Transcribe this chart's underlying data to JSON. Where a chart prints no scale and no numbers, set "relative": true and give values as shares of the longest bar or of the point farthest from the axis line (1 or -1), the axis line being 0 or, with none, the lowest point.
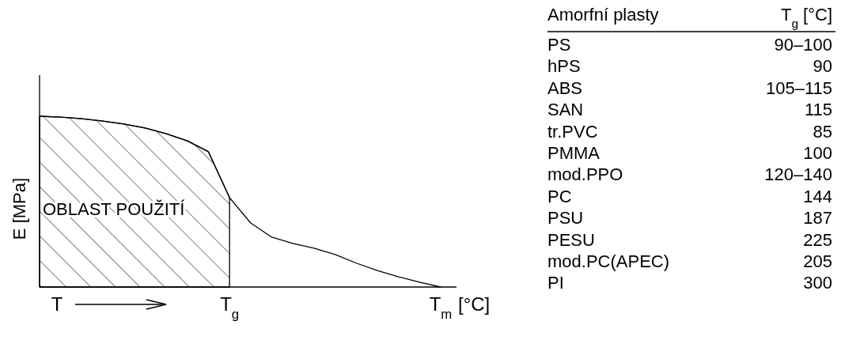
{
  "chart_data": [
    {
      "type": "line",
      "relative": true,
      "xlabel": "T",
      "ylabel": "E [MPa]",
      "categories": [
        null,
        null,
        null,
        null,
        null,
        null,
        null,
        null,
        null,
        "T$_{g}$",
        null,
        null,
        null,
        null,
        null,
        null,
        null,
        null,
        null,
        "T$_{m}$"
      ],
      "series": [
        {
          "type": "line",
          "color": "#000000",
          "values": [
            1.0,
            0.995,
            0.986,
            0.972,
            0.954,
            0.931,
            0.898,
            0.856,
            0.792,
            0.523,
            0.375,
            0.292,
            0.255,
            0.227,
            0.19,
            0.14,
            0.097,
            0.06,
            0.028,
            0
          ]
        },
        {
          "type": "area",
          "color": "#000000",
          "values": [
            1.0,
            0.995,
            0.986,
            0.972,
            0.954,
            0.931,
            0.898,
            0.856,
            0.792,
            0.523,
            null,
            null,
            null,
            null,
            null,
            null,
            null,
            null,
            null,
            null
          ]
        }
      ],
      "annotations": [
        "OBLAST POUŽITÍ",
        "[°C]"
      ]
    },
    {
      "type": "other",
      "annotations": [
        "Amorfní plasty",
        "T$_{g}$ [°C]"
      ],
      "categories": [
        "PS",
        "hPS",
        "ABS",
        "SAN",
        "tr.PVC",
        "PMMA",
        "mod.PPO",
        "PC",
        "PSU",
        "PESU",
        "mod.PC(APEC)",
        "PI"
      ],
      "value_labels": [
        "90–100",
        "90",
        "105–115",
        "115",
        "85",
        "100",
        "120–140",
        "144",
        "187",
        "225",
        "205",
        "300"
      ]
    }
  ]
}
